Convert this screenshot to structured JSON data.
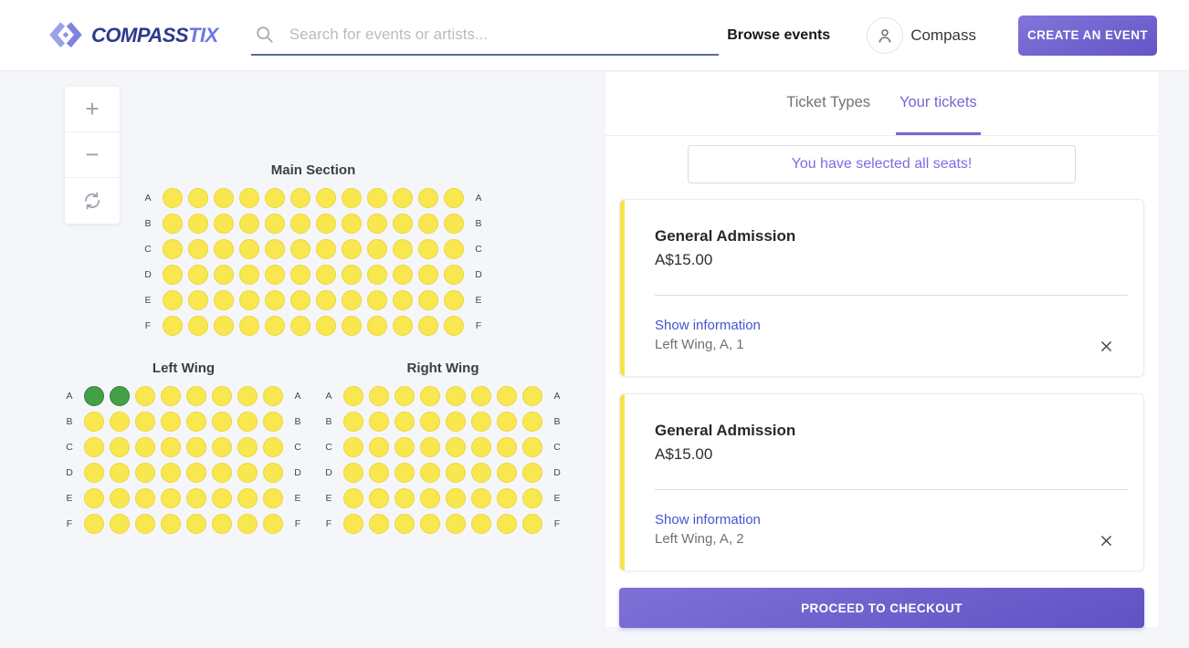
{
  "header": {
    "logo": {
      "compass": "COMPASS",
      "tix": "TIX"
    },
    "search": {
      "placeholder": "Search for events or artists..."
    },
    "browse_events": "Browse events",
    "user_name": "Compass",
    "create_event_label": "CREATE AN EVENT"
  },
  "map": {
    "controls": {
      "zoom_in": "+",
      "zoom_out": "−"
    },
    "sections": [
      {
        "id": "main",
        "title": "Main Section",
        "rows": [
          "A",
          "B",
          "C",
          "D",
          "E",
          "F"
        ],
        "seats_per_row": 12,
        "selected": {}
      },
      {
        "id": "left-wing",
        "title": "Left Wing",
        "rows": [
          "A",
          "B",
          "C",
          "D",
          "E",
          "F"
        ],
        "seats_per_row": 8,
        "selected": {
          "A": [
            1,
            2
          ]
        }
      },
      {
        "id": "right-wing",
        "title": "Right Wing",
        "rows": [
          "A",
          "B",
          "C",
          "D",
          "E",
          "F"
        ],
        "seats_per_row": 8,
        "selected": {}
      }
    ],
    "colors": {
      "seat_available": "#F8E74F",
      "seat_available_border": "#EDD73C",
      "seat_selected": "#43A047",
      "seat_selected_border": "#37813B"
    }
  },
  "panel": {
    "tabs": [
      {
        "label": "Ticket Types",
        "active": false
      },
      {
        "label": "Your tickets",
        "active": true
      }
    ],
    "message": "You have selected all seats!",
    "tickets": [
      {
        "name": "General Admission",
        "price": "A$15.00",
        "info_link": "Show information",
        "seat": "Left Wing, A, 1"
      },
      {
        "name": "General Admission",
        "price": "A$15.00",
        "info_link": "Show information",
        "seat": "Left Wing, A, 2"
      }
    ],
    "checkout_label": "PROCEED TO CHECKOUT",
    "accent_color": "#7568D2"
  }
}
